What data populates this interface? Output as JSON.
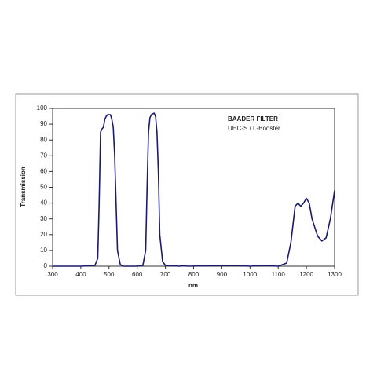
{
  "chart_data": {
    "type": "line",
    "annotations": [
      "BAADER FILTER",
      "UHC-S / L-Booster"
    ],
    "xlabel": "nm",
    "ylabel": "Transmission",
    "x": [
      300,
      400,
      450,
      460,
      465,
      470,
      475,
      480,
      485,
      490,
      495,
      505,
      510,
      515,
      520,
      525,
      530,
      540,
      550,
      600,
      620,
      630,
      635,
      640,
      645,
      650,
      660,
      665,
      670,
      675,
      680,
      690,
      700,
      750,
      760,
      780,
      850,
      950,
      1000,
      1050,
      1100,
      1130,
      1145,
      1160,
      1170,
      1180,
      1190,
      1200,
      1210,
      1220,
      1240,
      1255,
      1270,
      1285,
      1300
    ],
    "values": [
      0,
      0,
      0.5,
      5,
      40,
      85,
      87,
      88,
      93,
      95,
      96,
      96,
      93,
      88,
      70,
      40,
      10,
      1,
      0,
      0,
      0.5,
      10,
      50,
      85,
      94,
      96,
      97,
      95,
      85,
      60,
      20,
      3,
      0.5,
      0,
      0.5,
      0,
      0.3,
      0.5,
      0,
      0.5,
      0,
      2,
      15,
      38,
      40,
      38,
      40,
      43,
      40,
      30,
      19,
      16,
      18,
      30,
      48
    ],
    "color": "#1a1a6e",
    "xlim": [
      300,
      1300
    ],
    "xticks": [
      300,
      400,
      500,
      600,
      700,
      800,
      900,
      1000,
      1100,
      1200,
      1300
    ],
    "ylim": [
      0,
      100
    ],
    "yticks": [
      0,
      10,
      20,
      30,
      40,
      50,
      60,
      70,
      80,
      90,
      100
    ],
    "grid": false
  }
}
